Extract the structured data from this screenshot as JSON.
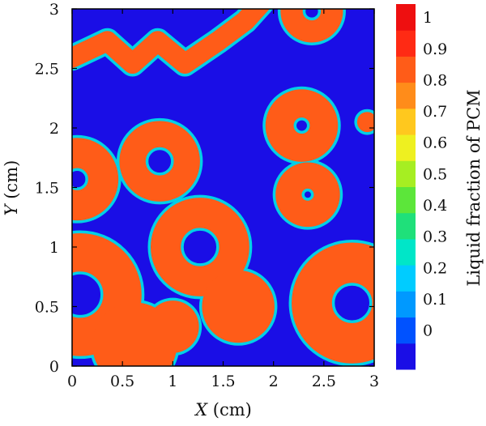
{
  "chart_data": {
    "type": "heatmap",
    "title": "",
    "xlabel": {
      "var": "X",
      "unit": " (cm)"
    },
    "ylabel": {
      "var": "Y",
      "unit": " (cm)"
    },
    "xlim": [
      0,
      3
    ],
    "ylim": [
      0,
      3
    ],
    "x_ticks": [
      "0",
      "0.5",
      "1",
      "1.5",
      "2",
      "2.5",
      "3"
    ],
    "y_ticks": [
      "0",
      "0.5",
      "1",
      "1.5",
      "2",
      "2.5",
      "3"
    ],
    "colorbar": {
      "label": "Liquid fraction of PCM",
      "ticks": [
        "0",
        "0.1",
        "0.2",
        "0.3",
        "0.4",
        "0.5",
        "0.6",
        "0.7",
        "0.8",
        "0.9",
        "1"
      ],
      "range": [
        0,
        1
      ],
      "levels": 12,
      "colors": [
        "#1a0ee6",
        "#0052ff",
        "#0099ff",
        "#00ccff",
        "#00e6c8",
        "#1fe07a",
        "#5ce63a",
        "#a6ee22",
        "#eef020",
        "#ffc81e",
        "#ff8c1a",
        "#ff5c18",
        "#ff2a14",
        "#ee0f10"
      ]
    },
    "field_description": "Liquid fraction field: molten (~0.9) ring-shaped bands around circular inclusions on a solid (~0) background, with thin transitional edges.",
    "regions": [
      {
        "shape": "band",
        "points": [
          [
            0.0,
            2.59
          ],
          [
            0.35,
            2.73
          ],
          [
            0.6,
            2.54
          ],
          [
            0.85,
            2.73
          ],
          [
            1.12,
            2.54
          ],
          [
            1.45,
            2.73
          ],
          [
            1.72,
            2.9
          ],
          [
            1.88,
            3.05
          ]
        ],
        "half_width": 0.1,
        "value": 0.9
      },
      {
        "shape": "ring",
        "cx": 2.38,
        "cy": 2.98,
        "r": 0.2,
        "half_width": 0.11,
        "value": 0.9
      },
      {
        "shape": "ring",
        "cx": 2.28,
        "cy": 2.02,
        "r": 0.22,
        "half_width": 0.14,
        "value": 0.9
      },
      {
        "shape": "ring",
        "cx": 2.34,
        "cy": 1.44,
        "r": 0.19,
        "half_width": 0.13,
        "value": 0.9
      },
      {
        "shape": "ring",
        "cx": 0.87,
        "cy": 1.72,
        "r": 0.27,
        "half_width": 0.13,
        "value": 0.9
      },
      {
        "shape": "ring",
        "cx": 0.05,
        "cy": 1.57,
        "r": 0.26,
        "half_width": 0.15,
        "value": 0.9
      },
      {
        "shape": "ring",
        "cx": 1.27,
        "cy": 1.0,
        "r": 0.34,
        "half_width": 0.15,
        "value": 0.9
      },
      {
        "shape": "ring",
        "cx": 0.08,
        "cy": 0.6,
        "r": 0.42,
        "half_width": 0.19,
        "value": 0.9
      },
      {
        "shape": "ring",
        "cx": 2.78,
        "cy": 0.53,
        "r": 0.4,
        "half_width": 0.2,
        "value": 0.9
      },
      {
        "shape": "disk",
        "cx": 0.62,
        "cy": 0.18,
        "r": 0.42,
        "value": 0.9
      },
      {
        "shape": "disk",
        "cx": 1.0,
        "cy": 0.33,
        "r": 0.26,
        "value": 0.9
      },
      {
        "shape": "disk",
        "cx": 1.65,
        "cy": 0.5,
        "r": 0.36,
        "value": 0.9
      },
      {
        "shape": "disk",
        "cx": 2.93,
        "cy": 2.05,
        "r": 0.1,
        "value": 0.9
      }
    ]
  }
}
